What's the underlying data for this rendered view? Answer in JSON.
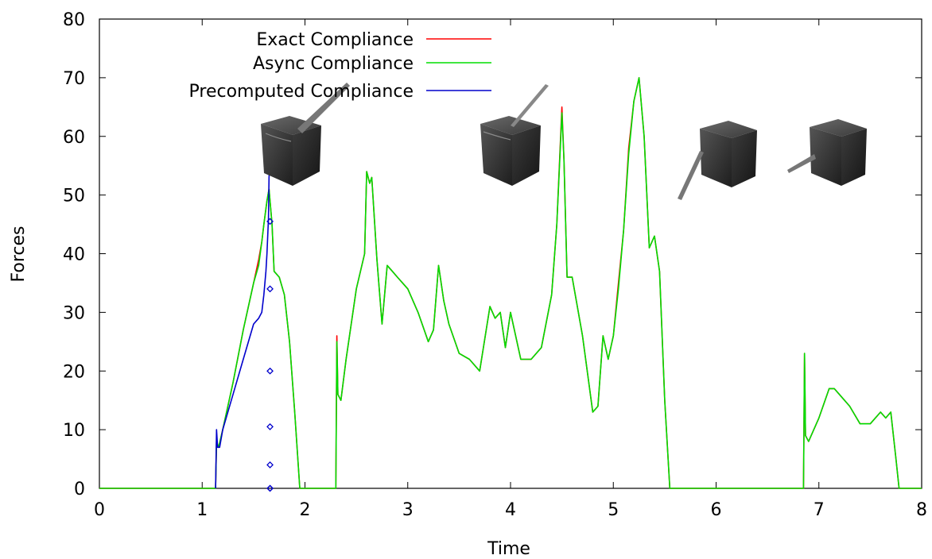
{
  "chart_data": {
    "type": "line",
    "xlabel": "Time",
    "ylabel": "Forces",
    "xlim": [
      0,
      8
    ],
    "ylim": [
      0,
      80
    ],
    "xticks": [
      0,
      1,
      2,
      3,
      4,
      5,
      6,
      7,
      8
    ],
    "yticks": [
      0,
      10,
      20,
      30,
      40,
      50,
      60,
      70,
      80
    ],
    "grid": false,
    "legend_position": "top-center",
    "series": [
      {
        "name": "Exact Compliance",
        "color": "#ff0000",
        "style": "line",
        "x": [
          0,
          1.13,
          1.14,
          1.16,
          1.2,
          1.3,
          1.4,
          1.5,
          1.55,
          1.58,
          1.6,
          1.63,
          1.65,
          1.68,
          1.7,
          1.75,
          1.8,
          1.85,
          1.9,
          1.95,
          2.0,
          2.3,
          2.31,
          2.32,
          2.35,
          2.4,
          2.5,
          2.58,
          2.6,
          2.63,
          2.65,
          2.7,
          2.75,
          2.8,
          2.85,
          2.9,
          3.0,
          3.1,
          3.2,
          3.25,
          3.3,
          3.35,
          3.4,
          3.5,
          3.6,
          3.7,
          3.8,
          3.85,
          3.9,
          3.95,
          4.0,
          4.1,
          4.2,
          4.3,
          4.4,
          4.45,
          4.5,
          4.52,
          4.55,
          4.6,
          4.7,
          4.8,
          4.85,
          4.9,
          4.95,
          5.0,
          5.05,
          5.1,
          5.15,
          5.2,
          5.25,
          5.3,
          5.35,
          5.4,
          5.45,
          5.5,
          5.55,
          6.85,
          6.86,
          6.87,
          6.9,
          7.0,
          7.1,
          7.15,
          7.2,
          7.3,
          7.4,
          7.5,
          7.6,
          7.65,
          7.7,
          7.75,
          7.78,
          8.0
        ],
        "y": [
          0,
          0,
          8,
          7,
          10,
          18,
          27,
          35,
          39,
          42,
          45,
          49,
          51,
          45,
          37,
          36,
          33,
          25,
          13,
          0,
          0,
          0,
          26,
          16,
          15,
          22,
          34,
          40,
          54,
          52,
          53,
          39,
          28,
          38,
          37,
          36,
          34,
          30,
          25,
          27,
          38,
          32,
          28,
          23,
          22,
          20,
          31,
          29,
          30,
          24,
          30,
          22,
          22,
          24,
          33,
          45,
          65,
          56,
          36,
          36,
          26,
          13,
          14,
          26,
          22,
          26,
          35,
          44,
          58,
          66,
          70,
          60,
          41,
          43,
          37,
          15,
          0,
          0,
          23,
          9,
          8,
          12,
          17,
          17,
          16,
          14,
          11,
          11,
          13,
          12,
          13,
          5,
          0,
          0
        ]
      },
      {
        "name": "Async Compliance",
        "color": "#00dd00",
        "style": "line",
        "x": [
          0,
          1.13,
          1.14,
          1.16,
          1.2,
          1.3,
          1.4,
          1.5,
          1.55,
          1.58,
          1.6,
          1.63,
          1.65,
          1.68,
          1.7,
          1.75,
          1.8,
          1.85,
          1.9,
          1.95,
          2.0,
          2.3,
          2.31,
          2.32,
          2.35,
          2.4,
          2.5,
          2.58,
          2.6,
          2.63,
          2.65,
          2.7,
          2.75,
          2.8,
          2.85,
          2.9,
          3.0,
          3.1,
          3.2,
          3.25,
          3.3,
          3.35,
          3.4,
          3.5,
          3.6,
          3.7,
          3.8,
          3.85,
          3.9,
          3.95,
          4.0,
          4.1,
          4.2,
          4.3,
          4.4,
          4.45,
          4.5,
          4.52,
          4.55,
          4.6,
          4.7,
          4.8,
          4.85,
          4.9,
          4.95,
          5.0,
          5.05,
          5.1,
          5.15,
          5.2,
          5.25,
          5.3,
          5.35,
          5.4,
          5.45,
          5.5,
          5.55,
          6.85,
          6.86,
          6.87,
          6.9,
          7.0,
          7.1,
          7.15,
          7.2,
          7.3,
          7.4,
          7.5,
          7.6,
          7.65,
          7.7,
          7.75,
          7.78,
          8.0
        ],
        "y": [
          0,
          0,
          8,
          7,
          10,
          18,
          27,
          35,
          38,
          42,
          45,
          49,
          51,
          45,
          37,
          36,
          33,
          25,
          13,
          0,
          0,
          0,
          25,
          16,
          15,
          22,
          34,
          40,
          54,
          52,
          53,
          39,
          28,
          38,
          37,
          36,
          34,
          30,
          25,
          27,
          38,
          32,
          28,
          23,
          22,
          20,
          31,
          29,
          30,
          24,
          30,
          22,
          22,
          24,
          33,
          45,
          64,
          56,
          36,
          36,
          26,
          13,
          14,
          26,
          22,
          26,
          34,
          44,
          57,
          66,
          70,
          60,
          41,
          43,
          37,
          15,
          0,
          0,
          23,
          9,
          8,
          12,
          17,
          17,
          16,
          14,
          11,
          11,
          13,
          12,
          13,
          5,
          0,
          0
        ]
      },
      {
        "name": "Precomputed Compliance",
        "color": "#0000cc",
        "style": "line",
        "x": [
          1.13,
          1.14,
          1.15,
          1.17,
          1.2,
          1.3,
          1.4,
          1.5,
          1.55,
          1.58,
          1.6,
          1.62,
          1.63,
          1.645,
          1.65,
          1.66
        ],
        "y": [
          0,
          10,
          7,
          7,
          10,
          16,
          22,
          28,
          29,
          30,
          33,
          37,
          40,
          46,
          53,
          56
        ]
      },
      {
        "name": "Precomputed Compliance",
        "color": "#0000cc",
        "style": "markers",
        "x": [
          1.66,
          1.66,
          1.66,
          1.66,
          1.66,
          1.66,
          1.66,
          1.66
        ],
        "y": [
          55.5,
          45.5,
          34,
          20,
          10.5,
          4,
          0,
          0
        ]
      }
    ]
  },
  "legend": [
    {
      "label": "Exact Compliance",
      "color": "#ff0000"
    },
    {
      "label": "Async Compliance",
      "color": "#00dd00"
    },
    {
      "label": "Precomputed Compliance",
      "color": "#0000cc"
    }
  ],
  "insets": [
    {
      "name": "cube-inset-1",
      "icon": "cube-with-tool-top-right-icon"
    },
    {
      "name": "cube-inset-2",
      "icon": "cube-with-tool-top-right-icon"
    },
    {
      "name": "cube-inset-3",
      "icon": "cube-with-tool-bottom-left-icon"
    },
    {
      "name": "cube-inset-4",
      "icon": "cube-with-tool-left-icon"
    }
  ]
}
